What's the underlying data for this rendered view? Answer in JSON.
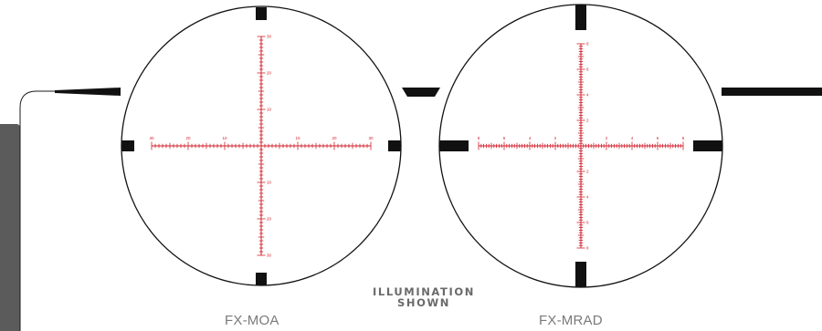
{
  "reticles": [
    {
      "name": "FX-MOA",
      "labels_h": [
        "30",
        "20",
        "10",
        "10",
        "20",
        "30"
      ],
      "labels_v": [
        "30",
        "20",
        "10",
        "10",
        "20",
        "30"
      ]
    },
    {
      "name": "FX-MRAD",
      "labels_h": [
        "8",
        "6",
        "4",
        "2",
        "2",
        "4",
        "6",
        "8"
      ],
      "labels_v": [
        "8",
        "6",
        "4",
        "2",
        "2",
        "4",
        "6",
        "8"
      ]
    }
  ],
  "illumination_line1": "ILLUMINATION",
  "illumination_line2": "SHOWN",
  "colors": {
    "reticle": "#d01f2b",
    "frame": "#111111",
    "tab": "#5b5b5b",
    "caption": "#7a7a7a"
  }
}
